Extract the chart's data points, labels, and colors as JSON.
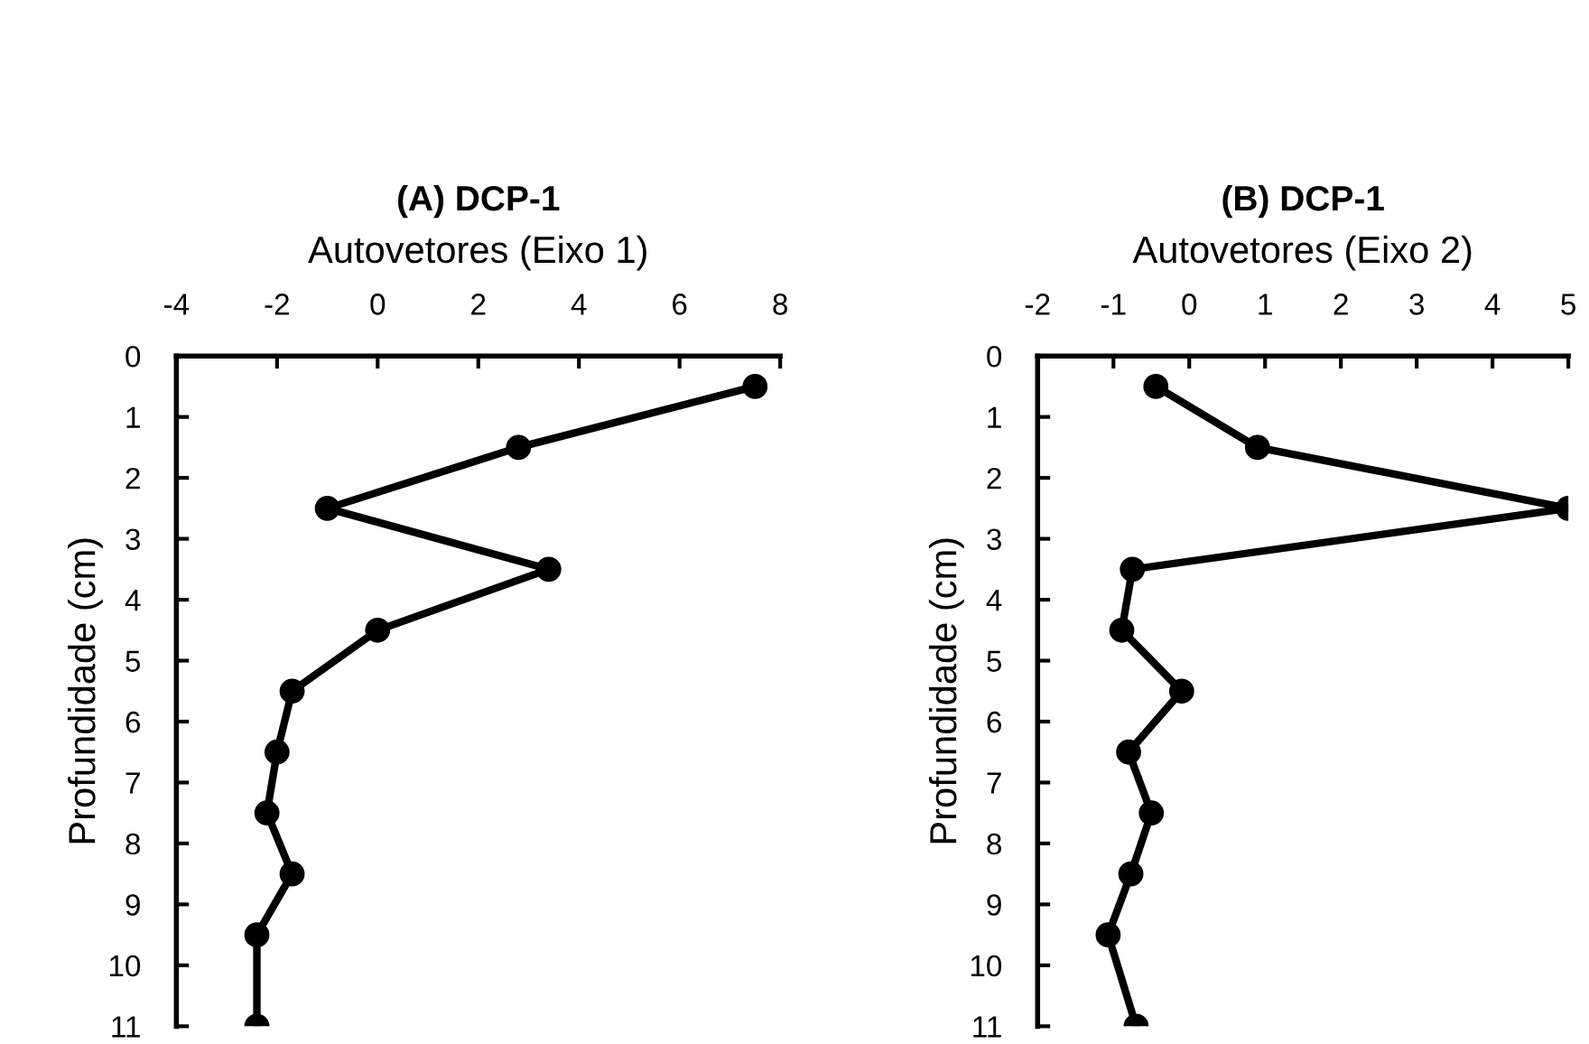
{
  "chart_data": [
    {
      "type": "line",
      "title": "(A) DCP-1",
      "xlabel": "Autovetores (Eixo 1)",
      "ylabel": "Profundidade (cm)",
      "series": [
        {
          "color": "#000000",
          "x": [
            7.5,
            2.8,
            -1.0,
            3.4,
            0.0,
            -1.7,
            -2.0,
            -2.2,
            -1.7,
            -2.4,
            -2.4
          ],
          "values": [
            0.5,
            1.5,
            2.5,
            3.5,
            4.5,
            5.5,
            6.5,
            7.5,
            8.5,
            9.5,
            11
          ]
        }
      ],
      "xlim": [
        -4,
        8
      ],
      "xticks": [
        -4,
        -2,
        0,
        2,
        4,
        6,
        8
      ],
      "ylim": [
        11,
        0
      ],
      "yticks": [
        0,
        1,
        2,
        3,
        4,
        5,
        6,
        7,
        8,
        9,
        10,
        11
      ],
      "marker": "circle",
      "line_style": "solid",
      "grid": false,
      "legend": false
    },
    {
      "type": "line",
      "title": "(B) DCP-1",
      "xlabel": "Autovetores (Eixo 2)",
      "ylabel": "Profundidade (cm)",
      "series": [
        {
          "color": "#000000",
          "x": [
            -0.44,
            0.9,
            5.0,
            -0.75,
            -0.89,
            -0.1,
            -0.8,
            -0.5,
            -0.77,
            -1.07,
            -0.7
          ],
          "values": [
            0.5,
            1.5,
            2.5,
            3.5,
            4.5,
            5.5,
            6.5,
            7.5,
            8.5,
            9.5,
            11
          ]
        }
      ],
      "xlim": [
        -2,
        5
      ],
      "xticks": [
        -2,
        -1,
        0,
        1,
        2,
        3,
        4,
        5
      ],
      "ylim": [
        11,
        0
      ],
      "yticks": [
        0,
        1,
        2,
        3,
        4,
        5,
        6,
        7,
        8,
        9,
        10,
        11
      ],
      "marker": "circle",
      "line_style": "solid",
      "grid": false,
      "legend": false
    }
  ]
}
